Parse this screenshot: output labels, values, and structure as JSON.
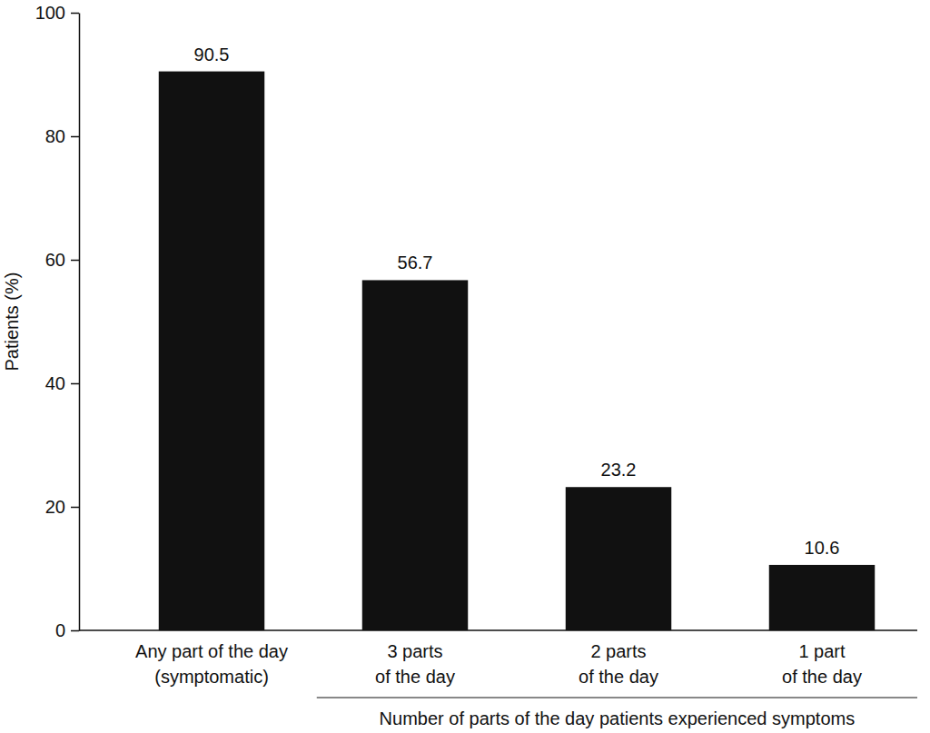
{
  "chart_data": {
    "type": "bar",
    "categories": [
      "Any part of the day\n(symptomatic)",
      "3 parts\nof the day",
      "2 parts\nof the day",
      "1 part\nof the day"
    ],
    "values": [
      90.5,
      56.7,
      23.2,
      10.6
    ],
    "color": "#111111",
    "y_label": "Patients (%)",
    "x_label": "Number of parts of the day patients experienced symptoms",
    "ylim": [
      0,
      100
    ],
    "yticks": [
      0,
      20,
      40,
      60,
      80,
      100
    ],
    "grid": false,
    "data_labels": true
  }
}
